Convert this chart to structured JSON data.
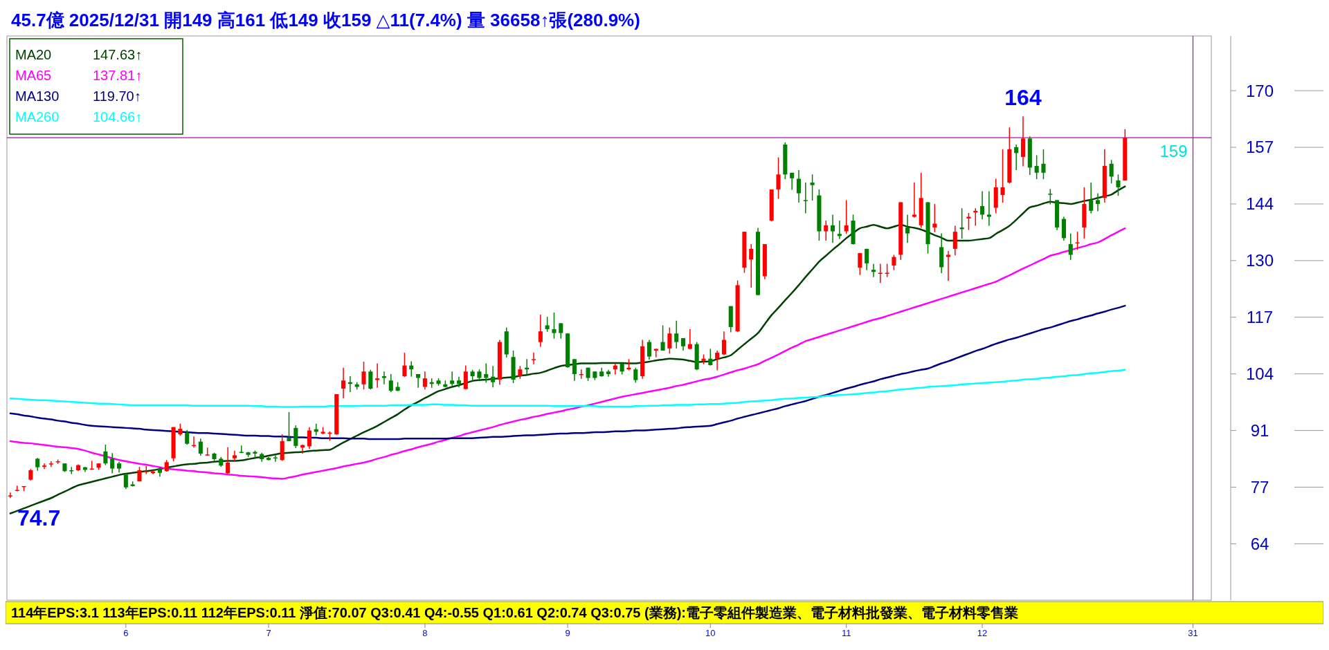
{
  "chart_data": {
    "type": "candlestick",
    "title": "45.7億  2025/12/31  開149 高161 低149 收159 △11(7.4%) 量 36658↑張(280.9%)",
    "categories": [
      null,
      null,
      null,
      null,
      null,
      null,
      null,
      null,
      null,
      null,
      null,
      null,
      null,
      null,
      null,
      null,
      null,
      "6",
      null,
      null,
      null,
      null,
      null,
      null,
      null,
      null,
      null,
      null,
      null,
      null,
      null,
      null,
      null,
      null,
      null,
      null,
      null,
      null,
      "7",
      null,
      null,
      null,
      null,
      null,
      null,
      null,
      null,
      null,
      null,
      null,
      null,
      null,
      null,
      null,
      null,
      null,
      null,
      null,
      null,
      null,
      null,
      "8",
      null,
      null,
      null,
      null,
      null,
      null,
      null,
      null,
      null,
      null,
      null,
      null,
      null,
      null,
      null,
      null,
      null,
      null,
      null,
      null,
      "9",
      null,
      null,
      null,
      null,
      null,
      null,
      null,
      null,
      null,
      null,
      null,
      null,
      null,
      null,
      null,
      null,
      null,
      null,
      null,
      null,
      "10",
      null,
      null,
      null,
      null,
      null,
      null,
      null,
      null,
      null,
      null,
      null,
      null,
      null,
      null,
      null,
      null,
      null,
      null,
      null,
      "11",
      null,
      null,
      null,
      null,
      null,
      null,
      null,
      null,
      null,
      null,
      null,
      null,
      null,
      null,
      null,
      null,
      null,
      null,
      null,
      "12",
      null,
      null,
      null,
      null,
      null,
      null,
      null,
      null,
      null,
      null,
      null,
      null,
      null,
      null,
      null,
      null,
      null,
      null,
      null,
      null,
      null,
      null,
      null,
      null,
      null,
      null,
      null,
      null,
      null,
      null,
      "31"
    ],
    "ylim": [
      50.8,
      182.8
    ],
    "yticks": [
      64,
      {
        "value": 77.25,
        "label": "77"
      },
      {
        "value": 90.5,
        "label": "91"
      },
      {
        "value": 103.75,
        "label": "104"
      },
      117,
      {
        "value": 130.25,
        "label": "130"
      },
      {
        "value": 143.5,
        "label": "144"
      },
      {
        "value": 156.75,
        "label": "157"
      },
      170
    ],
    "ohlc": [
      [
        75.3,
        76.0,
        74.7,
        75.3
      ],
      [
        76.6,
        77.6,
        76.3,
        76.6
      ],
      [
        77.5,
        77.5,
        76.3,
        77.5
      ],
      [
        79.0,
        81.5,
        78.8,
        81.2
      ],
      [
        83.9,
        84.1,
        81.1,
        81.9
      ],
      [
        82.0,
        82.8,
        81.5,
        82.3
      ],
      [
        82.8,
        83.3,
        82.0,
        82.8
      ],
      [
        83.3,
        83.7,
        82.7,
        83.3
      ],
      [
        82.8,
        82.8,
        80.8,
        81.0
      ],
      [
        81.2,
        82.0,
        80.3,
        81.1
      ],
      [
        81.2,
        82.6,
        81.0,
        82.4
      ],
      [
        81.9,
        82.0,
        80.8,
        81.3
      ],
      [
        81.6,
        83.4,
        81.3,
        81.6
      ],
      [
        81.8,
        82.8,
        81.3,
        82.8
      ],
      [
        85.6,
        87.2,
        82.4,
        82.8
      ],
      [
        83.9,
        85.2,
        80.5,
        81.6
      ],
      [
        82.8,
        83.2,
        80.7,
        81.6
      ],
      [
        80.2,
        80.5,
        76.8,
        77.2
      ],
      [
        77.9,
        78.6,
        77.4,
        77.5
      ],
      [
        78.6,
        82.0,
        78.6,
        81.2
      ],
      [
        80.9,
        82.2,
        80.3,
        81.0
      ],
      [
        80.5,
        81.2,
        80.3,
        80.9
      ],
      [
        81.6,
        82.0,
        79.7,
        80.6
      ],
      [
        81.0,
        83.6,
        80.9,
        83.1
      ],
      [
        84.0,
        91.3,
        83.3,
        91.3
      ],
      [
        89.6,
        92.1,
        89.3,
        90.9
      ],
      [
        90.0,
        90.6,
        87.2,
        87.4
      ],
      [
        87.1,
        89.1,
        86.5,
        87.1
      ],
      [
        87.9,
        88.6,
        84.6,
        85.1
      ],
      [
        84.9,
        86.5,
        84.6,
        84.9
      ],
      [
        85.1,
        85.3,
        83.4,
        83.8
      ],
      [
        83.9,
        84.3,
        82.0,
        82.3
      ],
      [
        80.5,
        86.6,
        80.4,
        83.0
      ],
      [
        84.0,
        85.8,
        83.3,
        84.7
      ],
      [
        85.5,
        87.0,
        85.2,
        85.3
      ],
      [
        85.4,
        85.5,
        84.3,
        84.8
      ],
      [
        85.5,
        85.8,
        84.1,
        85.1
      ],
      [
        85.0,
        85.3,
        83.2,
        83.8
      ],
      [
        84.1,
        84.3,
        83.5,
        83.6
      ],
      [
        84.2,
        84.6,
        83.2,
        84.1
      ],
      [
        83.6,
        89.6,
        83.4,
        88.0
      ],
      [
        88.8,
        94.8,
        88.0,
        88.0
      ],
      [
        91.1,
        91.7,
        86.4,
        86.9
      ],
      [
        86.5,
        87.2,
        85.1,
        87.1
      ],
      [
        86.8,
        91.3,
        86.2,
        90.5
      ],
      [
        90.8,
        92.1,
        89.4,
        90.2
      ],
      [
        89.8,
        91.3,
        89.6,
        90.2
      ],
      [
        90.0,
        90.3,
        88.1,
        90.0
      ],
      [
        89.6,
        99.0,
        89.5,
        99.0
      ],
      [
        100.3,
        105.2,
        98.0,
        102.2
      ],
      [
        101.8,
        103.2,
        99.5,
        101.4
      ],
      [
        101.3,
        101.8,
        100.1,
        100.7
      ],
      [
        101.3,
        106.6,
        100.1,
        104.3
      ],
      [
        104.3,
        104.7,
        100.1,
        100.3
      ],
      [
        102.3,
        106.2,
        100.5,
        102.7
      ],
      [
        103.2,
        104.3,
        101.3,
        102.8
      ],
      [
        102.2,
        103.7,
        99.5,
        99.8
      ],
      [
        100.7,
        101.8,
        99.7,
        99.8
      ],
      [
        103.2,
        108.7,
        103.0,
        105.7
      ],
      [
        105.7,
        106.7,
        103.1,
        104.8
      ],
      [
        103.7,
        103.7,
        100.5,
        102.8
      ],
      [
        100.7,
        104.3,
        100.1,
        102.7
      ],
      [
        101.8,
        102.7,
        100.5,
        101.4
      ],
      [
        102.2,
        102.7,
        101.0,
        101.4
      ],
      [
        101.3,
        102.2,
        100.6,
        100.7
      ],
      [
        102.2,
        104.3,
        101.0,
        101.4
      ],
      [
        102.2,
        103.1,
        100.6,
        101.4
      ],
      [
        100.2,
        105.7,
        100.1,
        104.3
      ],
      [
        104.3,
        104.7,
        102.1,
        103.2
      ],
      [
        104.3,
        104.8,
        102.3,
        102.8
      ],
      [
        103.7,
        106.2,
        101.7,
        102.8
      ],
      [
        103.1,
        105.6,
        100.6,
        101.8
      ],
      [
        102.4,
        111.7,
        101.2,
        111.2
      ],
      [
        113.7,
        114.6,
        107.6,
        108.3
      ],
      [
        107.7,
        109.2,
        101.6,
        102.4
      ],
      [
        103.2,
        105.6,
        102.6,
        104.8
      ],
      [
        105.2,
        107.2,
        103.6,
        104.8
      ],
      [
        107.2,
        108.7,
        106.0,
        107.2
      ],
      [
        111.2,
        117.6,
        110.1,
        113.7
      ],
      [
        115.1,
        117.1,
        113.6,
        114.2
      ],
      [
        114.2,
        118.1,
        112.0,
        113.3
      ],
      [
        115.6,
        115.6,
        112.0,
        113.3
      ],
      [
        113.2,
        113.2,
        105.2,
        105.3
      ],
      [
        107.2,
        107.2,
        102.1,
        103.7
      ],
      [
        103.7,
        104.8,
        102.6,
        103.7
      ],
      [
        105.2,
        105.2,
        102.1,
        102.8
      ],
      [
        104.3,
        104.3,
        102.3,
        102.8
      ],
      [
        104.3,
        105.2,
        103.1,
        103.2
      ],
      [
        104.3,
        104.7,
        103.1,
        103.7
      ],
      [
        104.8,
        106.2,
        103.6,
        105.7
      ],
      [
        106.2,
        106.2,
        103.6,
        104.3
      ],
      [
        104.8,
        107.2,
        104.6,
        105.2
      ],
      [
        104.8,
        105.2,
        101.7,
        102.3
      ],
      [
        103.2,
        111.7,
        102.6,
        110.2
      ],
      [
        111.2,
        111.7,
        107.1,
        107.8
      ],
      [
        109.2,
        109.6,
        107.6,
        109.6
      ],
      [
        111.2,
        115.1,
        109.2,
        109.2
      ],
      [
        109.7,
        114.6,
        108.5,
        113.2
      ],
      [
        113.2,
        116.2,
        109.7,
        111.2
      ],
      [
        112.1,
        112.1,
        109.2,
        110.2
      ],
      [
        109.6,
        114.2,
        109.5,
        110.7
      ],
      [
        110.7,
        111.2,
        104.6,
        104.8
      ],
      [
        106.8,
        108.3,
        106.0,
        107.3
      ],
      [
        107.3,
        109.6,
        105.7,
        105.8
      ],
      [
        107.3,
        109.2,
        104.6,
        108.7
      ],
      [
        108.3,
        113.7,
        108.1,
        111.7
      ],
      [
        119.6,
        119.6,
        113.5,
        114.7
      ],
      [
        113.7,
        125.6,
        113.5,
        124.5
      ],
      [
        128.6,
        137.0,
        127.4,
        137.0
      ],
      [
        130.5,
        134.1,
        123.9,
        133.0
      ],
      [
        137.0,
        137.9,
        122.1,
        122.2
      ],
      [
        126.6,
        134.1,
        125.9,
        134.1
      ],
      [
        139.6,
        146.9,
        139.4,
        146.9
      ],
      [
        146.9,
        154.4,
        144.7,
        150.4
      ],
      [
        157.4,
        157.9,
        149.3,
        150.4
      ],
      [
        150.8,
        150.8,
        146.8,
        149.5
      ],
      [
        149.4,
        151.4,
        143.8,
        146.0
      ],
      [
        144.4,
        148.5,
        141.3,
        144.3
      ],
      [
        148.5,
        150.4,
        144.3,
        147.9
      ],
      [
        145.5,
        146.9,
        134.9,
        137.1
      ],
      [
        137.1,
        139.6,
        134.9,
        138.5
      ],
      [
        138.5,
        141.0,
        134.4,
        137.1
      ],
      [
        136.5,
        139.6,
        135.3,
        136.0
      ],
      [
        137.1,
        144.4,
        136.5,
        138.5
      ],
      [
        139.6,
        141.0,
        134.0,
        134.1
      ],
      [
        128.6,
        132.0,
        126.9,
        132.0
      ],
      [
        133.0,
        133.0,
        128.0,
        129.6
      ],
      [
        128.1,
        129.5,
        126.4,
        127.6
      ],
      [
        127.4,
        129.5,
        125.0,
        127.4
      ],
      [
        127.4,
        129.5,
        126.4,
        127.4
      ],
      [
        129.1,
        131.6,
        128.0,
        131.1
      ],
      [
        131.6,
        143.9,
        130.4,
        143.9
      ],
      [
        138.0,
        141.0,
        134.4,
        136.6
      ],
      [
        140.5,
        148.5,
        140.3,
        141.0
      ],
      [
        138.5,
        150.8,
        137.9,
        144.9
      ],
      [
        143.9,
        143.9,
        131.9,
        134.1
      ],
      [
        138.0,
        143.5,
        136.9,
        138.9
      ],
      [
        133.4,
        136.6,
        127.3,
        128.7
      ],
      [
        131.1,
        132.5,
        125.5,
        131.6
      ],
      [
        133.0,
        138.4,
        131.5,
        137.0
      ],
      [
        138.0,
        142.5,
        135.4,
        137.6
      ],
      [
        140.1,
        141.4,
        137.4,
        140.5
      ],
      [
        141.5,
        142.5,
        138.4,
        141.9
      ],
      [
        143.0,
        146.5,
        139.9,
        141.0
      ],
      [
        141.0,
        146.5,
        138.4,
        140.5
      ],
      [
        142.6,
        149.4,
        141.3,
        147.4
      ],
      [
        145.6,
        156.3,
        143.8,
        147.4
      ],
      [
        148.5,
        161.4,
        148.3,
        156.3
      ],
      [
        156.8,
        157.4,
        151.4,
        155.4
      ],
      [
        154.5,
        164,
        152.3,
        158.8
      ],
      [
        158.8,
        159.3,
        150.3,
        152.0
      ],
      [
        152.4,
        154.9,
        149.3,
        150.8
      ],
      [
        152.9,
        156.3,
        149.3,
        150.8
      ],
      [
        145.9,
        147.0,
        143.4,
        145.8
      ],
      [
        144.4,
        144.4,
        137.4,
        138.0
      ],
      [
        140.0,
        140.5,
        134.9,
        135.5
      ],
      [
        134.1,
        136.6,
        130.4,
        131.6
      ],
      [
        134.5,
        137.0,
        132.8,
        134.5
      ],
      [
        138.0,
        147.4,
        135.4,
        143.5
      ],
      [
        144.4,
        148.5,
        141.3,
        141.9
      ],
      [
        144.4,
        146.0,
        141.8,
        143.5
      ],
      [
        144.9,
        156.3,
        143.8,
        152.4
      ],
      [
        152.9,
        153.8,
        148.3,
        149.9
      ],
      [
        149.0,
        150.4,
        145.4,
        147.4
      ],
      [
        149,
        161,
        149,
        159
      ],
      null,
      null,
      null,
      null,
      null,
      null,
      null,
      null,
      null,
      null
    ],
    "series": [
      {
        "type": "line",
        "name": "MA20",
        "color": "#004000",
        "values": [
          71.1,
          71.7,
          72.3,
          72.9,
          73.5,
          74.1,
          74.7,
          75.5,
          76.2,
          77.0,
          77.7,
          78.1,
          78.5,
          78.9,
          79.3,
          79.7,
          80.1,
          80.4,
          80.6,
          80.8,
          81.0,
          81.2,
          81.5,
          81.8,
          82.1,
          82.4,
          82.6,
          82.7,
          82.9,
          83.0,
          83.2,
          83.3,
          83.4,
          83.4,
          83.5,
          83.8,
          84.1,
          84.3,
          84.6,
          84.9,
          85.2,
          85.3,
          85.4,
          85.5,
          85.7,
          85.8,
          85.9,
          86.0,
          86.8,
          87.7,
          88.5,
          89.3,
          90.1,
          90.8,
          91.6,
          92.5,
          93.4,
          94.3,
          95.4,
          96.4,
          97.2,
          98.1,
          98.9,
          99.7,
          100.2,
          100.7,
          101.1,
          101.6,
          102.1,
          102.3,
          102.4,
          102.6,
          102.7,
          102.9,
          103.0,
          103.3,
          103.5,
          103.8,
          104.0,
          104.5,
          105.1,
          105.6,
          105.8,
          106.0,
          106.2,
          106.2,
          106.2,
          106.3,
          106.3,
          106.3,
          106.3,
          106.2,
          106.2,
          106.4,
          106.6,
          106.9,
          107.1,
          107.3,
          107.2,
          107.1,
          106.8,
          106.5,
          106.6,
          106.7,
          107.2,
          107.6,
          108.1,
          109.4,
          110.7,
          112.0,
          113.3,
          115.4,
          117.5,
          119.2,
          121.0,
          122.7,
          124.5,
          126.4,
          128.2,
          130.0,
          131.4,
          132.8,
          134.1,
          135.5,
          136.7,
          137.8,
          138.2,
          138.6,
          138.2,
          137.8,
          138.2,
          138.6,
          138.2,
          137.9,
          137.5,
          136.9,
          136.2,
          135.6,
          134.9,
          134.9,
          134.9,
          134.9,
          135.1,
          135.3,
          135.5,
          136.5,
          137.4,
          138.4,
          139.8,
          141.3,
          142.7,
          143.1,
          143.6,
          144.0,
          143.8,
          143.7,
          143.5,
          143.8,
          144.2,
          144.5,
          144.9,
          145.3,
          145.7,
          146.7,
          147.6,
          null,
          null,
          null,
          null,
          null,
          null,
          null,
          null,
          null,
          null
        ]
      },
      {
        "type": "line",
        "name": "MA65",
        "color": "#ff00ff",
        "values": [
          88.0,
          87.8,
          87.6,
          87.5,
          87.3,
          87.1,
          86.9,
          86.7,
          86.6,
          86.4,
          86.2,
          85.8,
          85.3,
          84.9,
          84.5,
          84.0,
          83.6,
          83.3,
          83.0,
          82.7,
          82.5,
          82.2,
          81.9,
          81.6,
          81.4,
          81.3,
          81.1,
          81.0,
          80.8,
          80.7,
          80.5,
          80.4,
          80.2,
          80.1,
          79.9,
          79.8,
          79.7,
          79.6,
          79.4,
          79.3,
          79.2,
          79.5,
          79.8,
          80.2,
          80.5,
          80.8,
          81.1,
          81.4,
          81.7,
          82.1,
          82.4,
          82.7,
          83.0,
          83.4,
          83.9,
          84.3,
          84.8,
          85.2,
          85.7,
          86.1,
          86.6,
          87.0,
          87.4,
          87.9,
          88.3,
          88.8,
          89.2,
          89.7,
          90.1,
          90.5,
          90.9,
          91.3,
          91.8,
          92.2,
          92.6,
          93.0,
          93.3,
          93.7,
          94.0,
          94.4,
          94.7,
          95.0,
          95.4,
          95.7,
          96.1,
          96.4,
          96.8,
          97.2,
          97.6,
          98.0,
          98.4,
          98.7,
          99.0,
          99.3,
          99.6,
          99.9,
          100.2,
          100.5,
          100.9,
          101.2,
          101.6,
          102.0,
          102.4,
          102.7,
          103.1,
          103.6,
          104.1,
          104.6,
          105.0,
          105.5,
          106.0,
          106.8,
          107.5,
          108.3,
          109.1,
          109.9,
          110.6,
          111.4,
          111.9,
          112.4,
          112.9,
          113.4,
          113.9,
          114.4,
          114.9,
          115.4,
          115.9,
          116.4,
          116.8,
          117.3,
          117.8,
          118.3,
          118.8,
          119.3,
          119.8,
          120.3,
          120.8,
          121.3,
          121.8,
          122.3,
          122.8,
          123.3,
          123.8,
          124.3,
          124.8,
          125.3,
          126.1,
          126.8,
          127.6,
          128.4,
          129.1,
          129.9,
          130.6,
          131.4,
          131.8,
          132.3,
          132.7,
          133.2,
          133.6,
          134.1,
          134.5,
          135.3,
          136.2,
          137.0,
          137.8,
          null,
          null,
          null,
          null,
          null,
          null,
          null,
          null,
          null,
          null
        ]
      },
      {
        "type": "line",
        "name": "MA130",
        "color": "#000080",
        "values": [
          94.5,
          94.3,
          94.0,
          93.8,
          93.5,
          93.3,
          93.1,
          92.8,
          92.6,
          92.3,
          92.1,
          91.8,
          91.6,
          91.5,
          91.4,
          91.3,
          91.2,
          91.1,
          91.0,
          90.9,
          90.7,
          90.6,
          90.5,
          90.4,
          90.3,
          90.2,
          90.1,
          90.0,
          89.9,
          89.9,
          89.8,
          89.7,
          89.6,
          89.5,
          89.4,
          89.3,
          89.3,
          89.2,
          89.2,
          89.1,
          89.1,
          89.0,
          88.9,
          88.9,
          88.8,
          88.8,
          88.7,
          88.7,
          88.7,
          88.7,
          88.6,
          88.6,
          88.6,
          88.5,
          88.5,
          88.5,
          88.5,
          88.5,
          88.6,
          88.6,
          88.6,
          88.6,
          88.6,
          88.6,
          88.6,
          88.7,
          88.7,
          88.7,
          88.7,
          88.8,
          88.9,
          89.0,
          89.0,
          89.1,
          89.2,
          89.3,
          89.4,
          89.4,
          89.5,
          89.6,
          89.7,
          89.8,
          89.8,
          89.9,
          89.9,
          90.0,
          90.1,
          90.1,
          90.2,
          90.3,
          90.3,
          90.4,
          90.5,
          90.5,
          90.6,
          90.7,
          90.8,
          90.9,
          91.0,
          91.2,
          91.3,
          91.4,
          91.5,
          91.6,
          92.0,
          92.4,
          92.8,
          93.3,
          93.7,
          94.1,
          94.5,
          94.9,
          95.3,
          95.7,
          96.2,
          96.6,
          97.0,
          97.4,
          97.9,
          98.4,
          98.8,
          99.3,
          99.8,
          100.3,
          100.7,
          101.2,
          101.6,
          102.0,
          102.5,
          102.9,
          103.3,
          103.7,
          104.0,
          104.4,
          104.7,
          105.0,
          105.6,
          106.2,
          106.7,
          107.3,
          107.9,
          108.5,
          109.1,
          109.6,
          110.2,
          110.8,
          111.3,
          111.8,
          112.2,
          112.7,
          113.2,
          113.7,
          114.2,
          114.6,
          115.1,
          115.6,
          116.1,
          116.5,
          117.0,
          117.4,
          117.9,
          118.3,
          118.8,
          119.2,
          119.7,
          null,
          null,
          null,
          null,
          null,
          null,
          null,
          null,
          null,
          null
        ]
      },
      {
        "type": "line",
        "name": "MA260",
        "color": "#00ffff",
        "values": [
          98.0,
          97.9,
          97.8,
          97.7,
          97.6,
          97.6,
          97.5,
          97.4,
          97.3,
          97.2,
          97.1,
          97.0,
          96.9,
          96.8,
          96.8,
          96.7,
          96.6,
          96.5,
          96.4,
          96.4,
          96.4,
          96.4,
          96.4,
          96.4,
          96.4,
          96.4,
          96.4,
          96.3,
          96.3,
          96.3,
          96.3,
          96.3,
          96.3,
          96.3,
          96.3,
          96.3,
          96.2,
          96.2,
          96.1,
          96.1,
          96.0,
          96.0,
          96.0,
          96.1,
          96.1,
          96.1,
          96.1,
          96.2,
          96.2,
          96.2,
          96.2,
          96.2,
          96.3,
          96.3,
          96.3,
          96.3,
          96.4,
          96.4,
          96.4,
          96.5,
          96.5,
          96.5,
          96.6,
          96.6,
          96.5,
          96.5,
          96.4,
          96.4,
          96.3,
          96.3,
          96.3,
          96.3,
          96.3,
          96.3,
          96.3,
          96.3,
          96.3,
          96.3,
          96.3,
          96.3,
          96.2,
          96.2,
          96.2,
          96.2,
          96.2,
          96.2,
          96.2,
          96.1,
          96.1,
          96.1,
          96.1,
          96.1,
          96.2,
          96.2,
          96.3,
          96.3,
          96.4,
          96.4,
          96.5,
          96.5,
          96.5,
          96.6,
          96.6,
          96.7,
          96.7,
          96.8,
          96.9,
          97.0,
          97.2,
          97.3,
          97.4,
          97.5,
          97.6,
          97.8,
          97.9,
          98.0,
          98.1,
          98.2,
          98.3,
          98.4,
          98.6,
          98.7,
          98.8,
          98.9,
          99.0,
          99.1,
          99.3,
          99.4,
          99.6,
          99.7,
          99.9,
          100.1,
          100.2,
          100.4,
          100.5,
          100.7,
          100.8,
          100.9,
          101.0,
          101.1,
          101.3,
          101.4,
          101.5,
          101.6,
          101.7,
          101.8,
          101.9,
          102.1,
          102.2,
          102.4,
          102.5,
          102.6,
          102.8,
          102.9,
          103.1,
          103.2,
          103.4,
          103.5,
          103.7,
          103.9,
          104.0,
          104.2,
          104.4,
          104.5,
          104.7,
          null,
          null,
          null,
          null,
          null,
          null,
          null,
          null,
          null,
          null
        ]
      }
    ],
    "legend": "top left",
    "ref_lines": [
      {
        "axis": "y",
        "value": 159,
        "label": "159",
        "color": "#c000c0"
      },
      {
        "axis": "x",
        "value": "31",
        "color": "#c000c0"
      }
    ],
    "annotations": [
      "147.63↑",
      "137.81↑",
      "119.70↑",
      "104.66↑",
      "74.7",
      "164",
      "114年EPS:3.1  113年EPS:0.11  112年EPS:0.11  淨值:70.07   Q3:0.41   Q4:-0.55   Q1:0.61   Q2:0.74   Q3:0.75   (業務):電子零組件製造業、電子材料批發業、電子材料零售業"
    ]
  }
}
